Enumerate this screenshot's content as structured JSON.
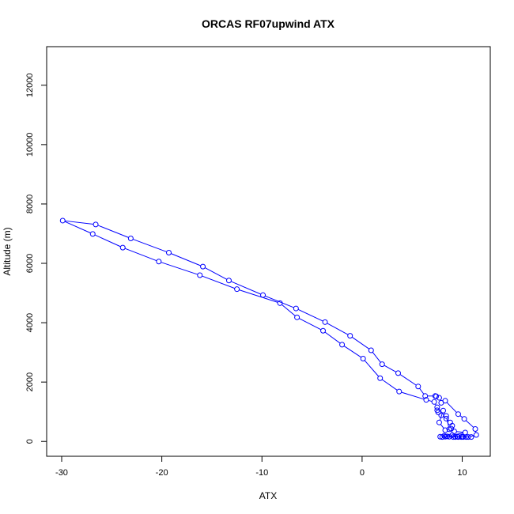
{
  "chart_data": {
    "type": "line",
    "title": "ORCAS RF07upwind ATX",
    "xlabel": "ATX",
    "ylabel": "Altitude (m)",
    "xlim": [
      -31.5,
      12.8
    ],
    "ylim": [
      -500,
      13300
    ],
    "x_ticks": [
      -30,
      -20,
      -10,
      0,
      10
    ],
    "y_ticks": [
      0,
      2000,
      4000,
      6000,
      8000,
      10000,
      12000
    ],
    "grid": false,
    "legend": "none",
    "series": [
      {
        "color": "#0000ff",
        "marker": "open-circle",
        "points": [
          [
            8.3,
            160
          ],
          [
            8.7,
            160
          ],
          [
            9.1,
            150
          ],
          [
            9.6,
            150
          ],
          [
            10.1,
            150
          ],
          [
            10.6,
            150
          ],
          [
            11.4,
            220
          ],
          [
            11.3,
            420
          ],
          [
            10.2,
            760
          ],
          [
            9.6,
            920
          ],
          [
            8.3,
            1370
          ],
          [
            7.9,
            1300
          ],
          [
            7.7,
            1470
          ],
          [
            7.4,
            1520
          ],
          [
            7.3,
            1530
          ],
          [
            6.3,
            1530
          ],
          [
            5.6,
            1850
          ],
          [
            3.6,
            2300
          ],
          [
            2.0,
            2600
          ],
          [
            0.9,
            3070
          ],
          [
            -1.2,
            3560
          ],
          [
            -3.7,
            4020
          ],
          [
            -6.6,
            4480
          ],
          [
            -9.9,
            4930
          ],
          [
            -13.3,
            5420
          ],
          [
            -15.9,
            5890
          ],
          [
            -19.3,
            6360
          ],
          [
            -23.1,
            6840
          ],
          [
            -26.6,
            7310
          ],
          [
            -29.9,
            7440
          ],
          [
            -26.9,
            6990
          ],
          [
            -23.9,
            6530
          ],
          [
            -20.3,
            6060
          ],
          [
            -16.2,
            5600
          ],
          [
            -12.5,
            5130
          ],
          [
            -8.2,
            4660
          ],
          [
            -6.5,
            4180
          ],
          [
            -3.9,
            3730
          ],
          [
            -2.0,
            3260
          ],
          [
            0.1,
            2790
          ],
          [
            1.8,
            2130
          ],
          [
            3.7,
            1680
          ],
          [
            6.4,
            1400
          ],
          [
            7.2,
            1330
          ],
          [
            7.5,
            1150
          ],
          [
            7.5,
            1050
          ],
          [
            7.6,
            980
          ],
          [
            7.9,
            880
          ],
          [
            8.4,
            770
          ],
          [
            8.8,
            640
          ],
          [
            9.0,
            530
          ],
          [
            8.9,
            430
          ],
          [
            8.3,
            380
          ],
          [
            7.7,
            640
          ],
          [
            8.1,
            1040
          ],
          [
            8.4,
            860
          ],
          [
            8.7,
            410
          ],
          [
            9.2,
            340
          ],
          [
            10.3,
            300
          ],
          [
            9.0,
            210
          ],
          [
            8.2,
            190
          ],
          [
            8.0,
            150
          ],
          [
            9.3,
            150
          ],
          [
            9.9,
            150
          ],
          [
            10.4,
            150
          ],
          [
            10.9,
            150
          ],
          [
            7.8,
            160
          ],
          [
            8.5,
            170
          ],
          [
            9.5,
            160
          ],
          [
            10.0,
            160
          ]
        ]
      }
    ]
  }
}
